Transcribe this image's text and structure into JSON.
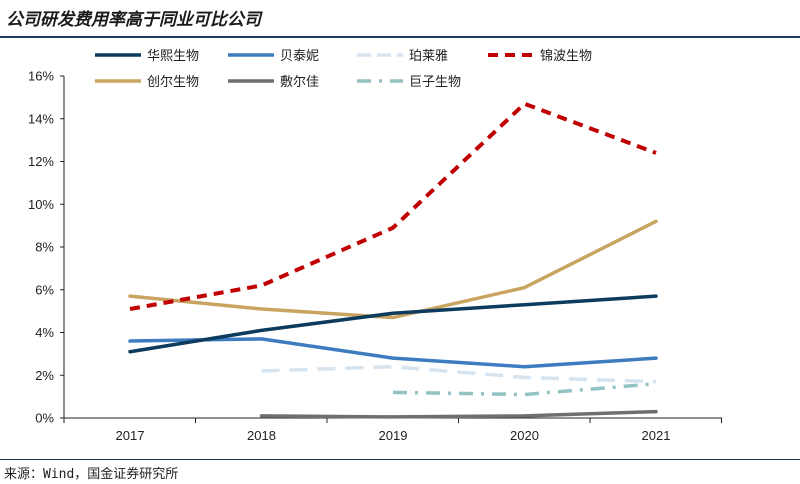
{
  "title": "公司研发费用率高于同业可比公司",
  "source": "来源：Wind，国金证券研究所",
  "chart_data": {
    "type": "line",
    "title": "公司研发费用率高于同业可比公司",
    "xlabel": "",
    "ylabel": "",
    "categories": [
      "2017",
      "2018",
      "2019",
      "2020",
      "2021"
    ],
    "ylim": [
      0,
      16
    ],
    "yticks": [
      0,
      2,
      4,
      6,
      8,
      10,
      12,
      14,
      16
    ],
    "ytick_labels": [
      "0%",
      "2%",
      "4%",
      "6%",
      "8%",
      "10%",
      "12%",
      "14%",
      "16%"
    ],
    "legend_position": "top",
    "series": [
      {
        "name": "华熙生物",
        "values": [
          3.1,
          4.1,
          4.9,
          5.3,
          5.7
        ],
        "color": "#0d3b5e",
        "dash": "solid"
      },
      {
        "name": "贝泰妮",
        "values": [
          3.6,
          3.7,
          2.8,
          2.4,
          2.8
        ],
        "color": "#3e7cc0",
        "dash": "solid"
      },
      {
        "name": "珀莱雅",
        "values": [
          null,
          2.2,
          2.4,
          1.9,
          1.7
        ],
        "color": "#d6e4f0",
        "dash": "long"
      },
      {
        "name": "锦波生物",
        "values": [
          5.1,
          6.2,
          8.9,
          14.7,
          12.4
        ],
        "color": "#c00000",
        "dash": "medium"
      },
      {
        "name": "创尔生物",
        "values": [
          5.7,
          5.1,
          4.7,
          6.1,
          9.2
        ],
        "color": "#c9a461",
        "dash": "solid"
      },
      {
        "name": "敷尔佳",
        "values": [
          null,
          0.1,
          0.05,
          0.1,
          0.3
        ],
        "color": "#6f6f6f",
        "dash": "solid"
      },
      {
        "name": "巨子生物",
        "values": [
          null,
          null,
          1.2,
          1.1,
          1.6
        ],
        "color": "#93c2c2",
        "dash": "dashdot"
      }
    ]
  }
}
